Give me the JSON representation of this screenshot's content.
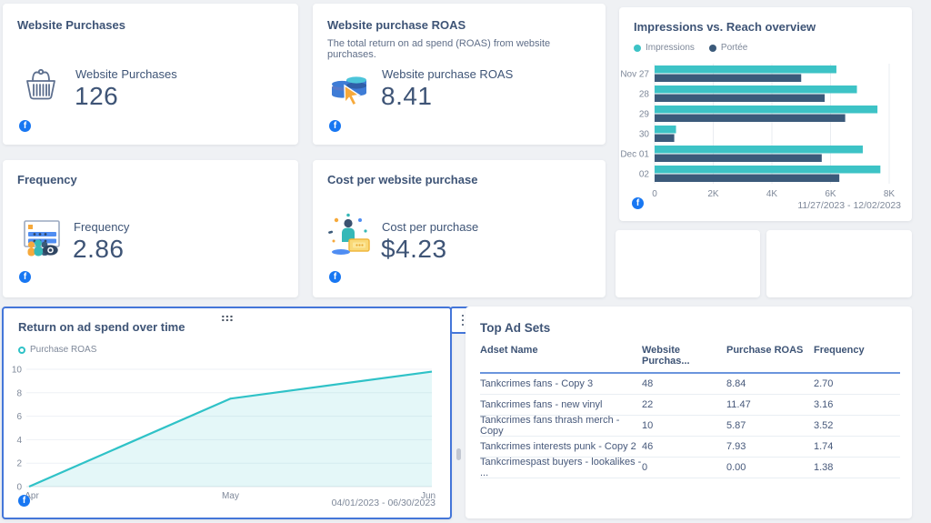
{
  "colors": {
    "teal": "#3dc3c6",
    "navy": "#3b5a7a",
    "facebook_blue": "#1877f2",
    "selection_blue": "#4476d9",
    "table_header_underline": "#6b95dd"
  },
  "cards": {
    "website_purchases": {
      "title": "Website Purchases",
      "metric_label": "Website Purchases",
      "value": "126",
      "icon": "basket-icon",
      "source_icon": "facebook-icon",
      "source_glyph": "f"
    },
    "website_purchase_roas": {
      "title": "Website purchase ROAS",
      "description": "The total return on ad spend (ROAS) from website purchases.",
      "metric_label": "Website purchase ROAS",
      "value": "8.41",
      "icon": "coins-cursor-icon",
      "source_icon": "facebook-icon",
      "source_glyph": "f"
    },
    "impressions_reach": {
      "title": "Impressions vs. Reach overview",
      "date_range": "11/27/2023 - 12/02/2023",
      "source_icon": "facebook-icon",
      "source_glyph": "f"
    },
    "frequency": {
      "title": "Frequency",
      "metric_label": "Frequency",
      "value": "2.86",
      "icon": "audience-views-icon",
      "source_icon": "facebook-icon",
      "source_glyph": "f"
    },
    "cost_per_purchase": {
      "title": "Cost per website purchase",
      "metric_label": "Cost per purchase",
      "value": "$4.23",
      "icon": "person-money-icon",
      "source_icon": "facebook-icon",
      "source_glyph": "f"
    },
    "roas_over_time": {
      "title": "Return on ad spend over time",
      "date_range": "04/01/2023 - 06/30/2023",
      "source_icon": "facebook-icon",
      "source_glyph": "f",
      "menu_icon": "kebab-menu-icon",
      "drag_icon": "drag-handle-icon",
      "selected": true
    },
    "top_ad_sets": {
      "title": "Top Ad Sets",
      "columns": [
        "Adset Name",
        "Website Purchas...",
        "Purchase ROAS",
        "Frequency"
      ],
      "rows": [
        [
          "Tankcrimes fans - Copy 3",
          "48",
          "8.84",
          "2.70"
        ],
        [
          "Tankcrimes fans - new vinyl",
          "22",
          "11.47",
          "3.16"
        ],
        [
          "Tankcrimes fans thrash merch - Copy",
          "10",
          "5.87",
          "3.52"
        ],
        [
          "Tankcrimes interests punk - Copy 2",
          "46",
          "7.93",
          "1.74"
        ],
        [
          "Tankcrimespast buyers - lookalikes - ...",
          "0",
          "0.00",
          "1.38"
        ]
      ]
    }
  },
  "chart_data": [
    {
      "type": "bar",
      "orientation": "horizontal",
      "title": "Impressions vs. Reach overview",
      "categories": [
        "Nov 27",
        "28",
        "29",
        "30",
        "Dec 01",
        "02"
      ],
      "series": [
        {
          "name": "Impressions",
          "color": "#3dc3c6",
          "values": [
            6200,
            6900,
            7600,
            730,
            7100,
            7700
          ]
        },
        {
          "name": "Portée",
          "color": "#3b5a7a",
          "values": [
            5000,
            5800,
            6500,
            670,
            5700,
            6300
          ]
        }
      ],
      "xlim": [
        0,
        8000
      ],
      "xticks": [
        {
          "value": 0,
          "label": "0"
        },
        {
          "value": 2000,
          "label": "2K"
        },
        {
          "value": 4000,
          "label": "4K"
        },
        {
          "value": 6000,
          "label": "6K"
        },
        {
          "value": 8000,
          "label": "8K"
        }
      ],
      "grid": true,
      "legend_position": "top",
      "footer": "11/27/2023 - 12/02/2023"
    },
    {
      "type": "area",
      "title": "Return on ad spend over time",
      "x": [
        "Apr",
        "May",
        "Jun"
      ],
      "series": [
        {
          "name": "Purchase ROAS",
          "color": "#2fc2c7",
          "values": [
            0,
            7.5,
            9.8
          ]
        }
      ],
      "ylim": [
        0,
        10
      ],
      "yticks": [
        0,
        2,
        4,
        6,
        8,
        10
      ],
      "grid": true,
      "legend_position": "top",
      "footer": "04/01/2023 - 06/30/2023"
    }
  ]
}
